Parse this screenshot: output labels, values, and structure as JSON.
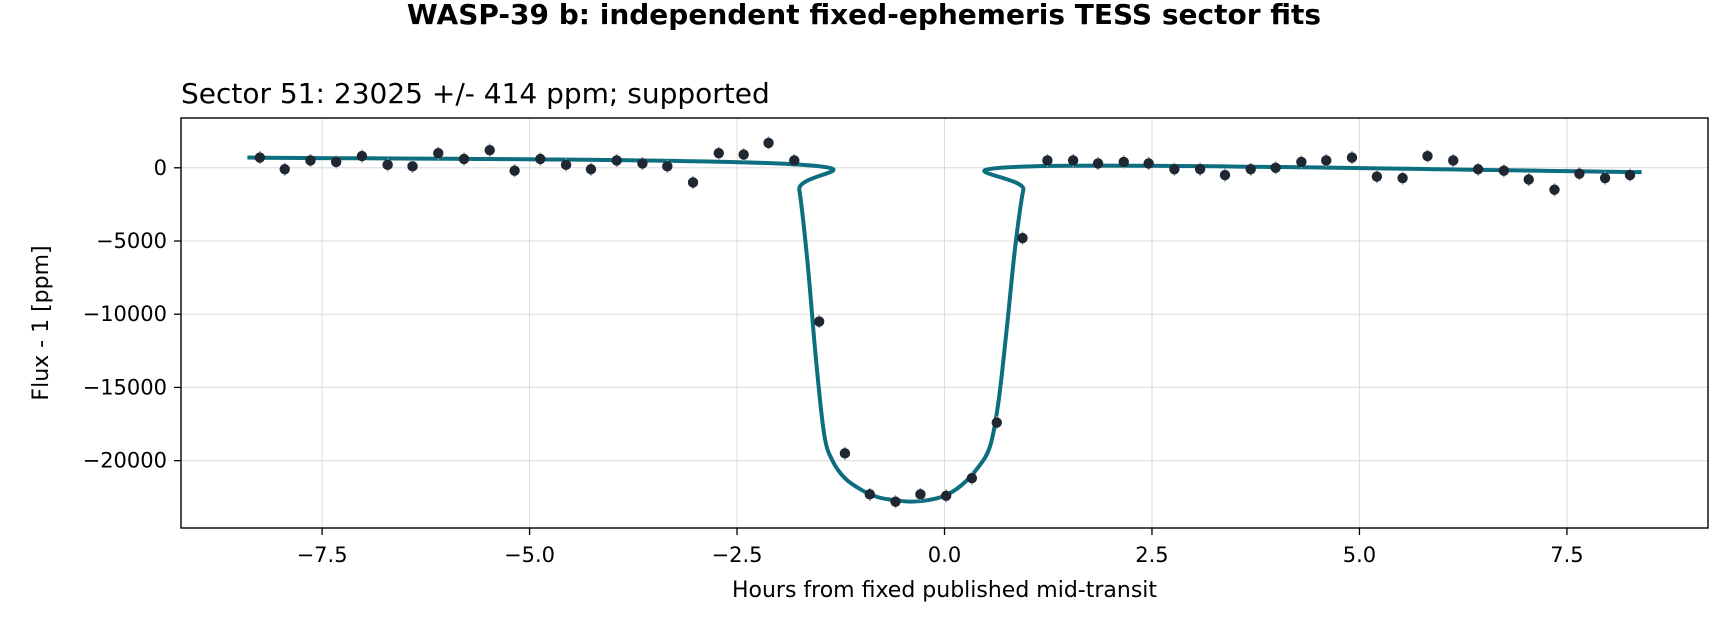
{
  "figure_title": "WASP-39 b: independent fixed-ephemeris TESS sector fits",
  "colors": {
    "model": "#0d6e7f",
    "points": "#1e2732",
    "errorbars": "#9aa0a6",
    "grid": "#dcdcdc",
    "axes": "#000000"
  },
  "chart_data": {
    "type": "scatter",
    "title": "Sector 51: 23025 +/- 414 ppm; supported",
    "xlabel": "Hours from fixed published mid-transit",
    "ylabel": "Flux - 1 [ppm]",
    "xlim": [
      -9.2,
      9.2
    ],
    "ylim": [
      -24600,
      3400
    ],
    "xticks": [
      -7.5,
      -5.0,
      -2.5,
      0.0,
      2.5,
      5.0,
      7.5
    ],
    "xtick_labels": [
      "−7.5",
      "−5.0",
      "−2.5",
      "0.0",
      "2.5",
      "5.0",
      "7.5"
    ],
    "yticks": [
      0,
      -5000,
      -10000,
      -15000,
      -20000
    ],
    "ytick_labels": [
      "0",
      "−5000",
      "−10000",
      "−15000",
      "−20000"
    ],
    "grid": true,
    "legend": "none",
    "observations": {
      "x": [
        -8.25,
        -7.95,
        -7.64,
        -7.33,
        -7.02,
        -6.71,
        -6.41,
        -6.1,
        -5.79,
        -5.48,
        -5.18,
        -4.87,
        -4.56,
        -4.26,
        -3.95,
        -3.64,
        -3.34,
        -3.03,
        -2.72,
        -2.42,
        -2.12,
        -1.81,
        -1.51,
        -1.2,
        -0.9,
        -0.59,
        -0.29,
        0.02,
        0.33,
        0.63,
        0.94,
        1.24,
        1.55,
        1.85,
        2.16,
        2.46,
        2.77,
        3.08,
        3.38,
        3.69,
        3.99,
        4.3,
        4.6,
        4.91,
        5.21,
        5.52,
        5.82,
        6.13,
        6.43,
        6.74,
        7.04,
        7.35,
        7.65,
        7.96,
        8.26
      ],
      "y": [
        700,
        -100,
        500,
        400,
        800,
        200,
        100,
        1000,
        600,
        1200,
        -200,
        600,
        200,
        -100,
        500,
        300,
        100,
        -1000,
        1000,
        900,
        1700,
        500,
        -10500,
        -19500,
        -22300,
        -22800,
        -22300,
        -22400,
        -21200,
        -17400,
        -4800,
        500,
        500,
        300,
        400,
        300,
        -100,
        -100,
        -500,
        -100,
        0,
        400,
        500,
        700,
        -600,
        -700,
        800,
        500,
        -100,
        -200,
        -800,
        -1500,
        -400,
        -700,
        -500
      ],
      "yerr": [
        450,
        450,
        450,
        450,
        450,
        450,
        450,
        450,
        450,
        450,
        450,
        450,
        450,
        450,
        450,
        450,
        450,
        450,
        450,
        450,
        450,
        450,
        450,
        450,
        450,
        450,
        450,
        450,
        450,
        450,
        450,
        450,
        450,
        450,
        450,
        450,
        450,
        450,
        450,
        450,
        450,
        450,
        450,
        450,
        450,
        450,
        450,
        450,
        450,
        450,
        450,
        450,
        450,
        450,
        450
      ]
    },
    "model": {
      "name": "",
      "x": [
        -8.4,
        -1.85,
        -1.75,
        -1.65,
        -1.55,
        -1.45,
        -1.35,
        -1.2,
        -1.0,
        -0.8,
        -0.6,
        -0.4,
        -0.2,
        0.0,
        0.2,
        0.4,
        0.55,
        0.65,
        0.75,
        0.85,
        0.95,
        1.05,
        8.4
      ],
      "y": [
        700,
        250,
        -1500,
        -6500,
        -13000,
        -18200,
        -20000,
        -21200,
        -22000,
        -22500,
        -22700,
        -22800,
        -22700,
        -22400,
        -21700,
        -20500,
        -19000,
        -16000,
        -11000,
        -5500,
        -1500,
        100,
        -300
      ]
    }
  }
}
